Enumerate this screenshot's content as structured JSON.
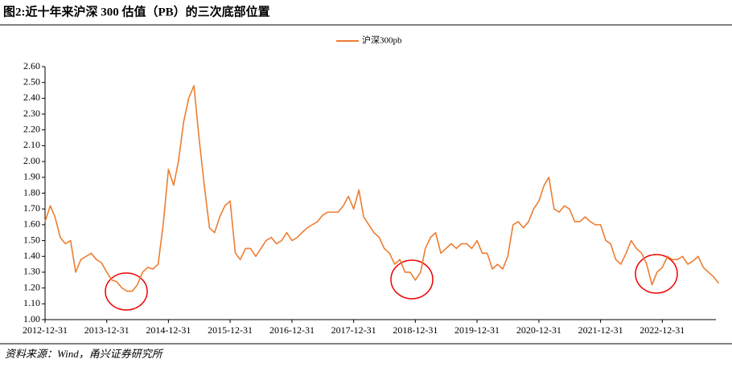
{
  "chart_data": {
    "type": "line",
    "title": "图2:近十年来沪深 300 估值（PB）的三次底部位置",
    "source": "资料来源：Wind，甬兴证券研究所",
    "legend": "top",
    "x": [
      "2012-12-31",
      "2013-01-31",
      "2013-02-28",
      "2013-03-31",
      "2013-04-30",
      "2013-05-31",
      "2013-06-30",
      "2013-07-31",
      "2013-08-31",
      "2013-09-30",
      "2013-10-31",
      "2013-11-30",
      "2013-12-31",
      "2014-01-31",
      "2014-02-28",
      "2014-03-31",
      "2014-04-30",
      "2014-05-31",
      "2014-06-30",
      "2014-07-31",
      "2014-08-31",
      "2014-09-30",
      "2014-10-31",
      "2014-11-30",
      "2014-12-31",
      "2015-01-31",
      "2015-02-28",
      "2015-03-31",
      "2015-04-30",
      "2015-05-31",
      "2015-06-30",
      "2015-07-31",
      "2015-08-31",
      "2015-09-30",
      "2015-10-31",
      "2015-11-30",
      "2015-12-31",
      "2016-01-31",
      "2016-02-29",
      "2016-03-31",
      "2016-04-30",
      "2016-05-31",
      "2016-06-30",
      "2016-07-31",
      "2016-08-31",
      "2016-09-30",
      "2016-10-31",
      "2016-11-30",
      "2016-12-31",
      "2017-01-31",
      "2017-02-28",
      "2017-03-31",
      "2017-04-30",
      "2017-05-31",
      "2017-06-30",
      "2017-07-31",
      "2017-08-31",
      "2017-09-30",
      "2017-10-31",
      "2017-11-30",
      "2017-12-31",
      "2018-01-31",
      "2018-02-28",
      "2018-03-31",
      "2018-04-30",
      "2018-05-31",
      "2018-06-30",
      "2018-07-31",
      "2018-08-31",
      "2018-09-30",
      "2018-10-31",
      "2018-11-30",
      "2018-12-31",
      "2019-01-31",
      "2019-02-28",
      "2019-03-31",
      "2019-04-30",
      "2019-05-31",
      "2019-06-30",
      "2019-07-31",
      "2019-08-31",
      "2019-09-30",
      "2019-10-31",
      "2019-11-30",
      "2019-12-31",
      "2020-01-31",
      "2020-02-29",
      "2020-03-31",
      "2020-04-30",
      "2020-05-31",
      "2020-06-30",
      "2020-07-31",
      "2020-08-31",
      "2020-09-30",
      "2020-10-31",
      "2020-11-30",
      "2020-12-31",
      "2021-01-31",
      "2021-02-28",
      "2021-03-31",
      "2021-04-30",
      "2021-05-31",
      "2021-06-30",
      "2021-07-31",
      "2021-08-31",
      "2021-09-30",
      "2021-10-31",
      "2021-11-30",
      "2021-12-31",
      "2022-01-31",
      "2022-02-28",
      "2022-03-31",
      "2022-04-30",
      "2022-05-31",
      "2022-06-30",
      "2022-07-31",
      "2022-08-31",
      "2022-09-30",
      "2022-10-31",
      "2022-11-30",
      "2022-12-31",
      "2023-01-31",
      "2023-02-28",
      "2023-03-31",
      "2023-04-30",
      "2023-05-31",
      "2023-06-30",
      "2023-07-31",
      "2023-08-31",
      "2023-09-30",
      "2023-10-31",
      "2023-11-30"
    ],
    "series": [
      {
        "name": "沪深300pb",
        "color": "#ed7d31",
        "values": [
          1.62,
          1.72,
          1.65,
          1.52,
          1.48,
          1.5,
          1.3,
          1.38,
          1.4,
          1.42,
          1.38,
          1.36,
          1.3,
          1.25,
          1.24,
          1.2,
          1.18,
          1.18,
          1.22,
          1.3,
          1.33,
          1.32,
          1.35,
          1.6,
          1.95,
          1.85,
          2.0,
          2.25,
          2.4,
          2.48,
          2.15,
          1.85,
          1.58,
          1.55,
          1.65,
          1.72,
          1.75,
          1.42,
          1.38,
          1.45,
          1.45,
          1.4,
          1.45,
          1.5,
          1.52,
          1.48,
          1.5,
          1.55,
          1.5,
          1.52,
          1.55,
          1.58,
          1.6,
          1.62,
          1.66,
          1.68,
          1.68,
          1.68,
          1.72,
          1.78,
          1.7,
          1.82,
          1.65,
          1.6,
          1.55,
          1.52,
          1.45,
          1.42,
          1.35,
          1.38,
          1.3,
          1.3,
          1.25,
          1.3,
          1.45,
          1.52,
          1.55,
          1.42,
          1.45,
          1.48,
          1.45,
          1.48,
          1.48,
          1.45,
          1.5,
          1.42,
          1.42,
          1.32,
          1.35,
          1.32,
          1.4,
          1.6,
          1.62,
          1.58,
          1.62,
          1.7,
          1.75,
          1.85,
          1.9,
          1.7,
          1.68,
          1.72,
          1.7,
          1.62,
          1.62,
          1.65,
          1.62,
          1.6,
          1.6,
          1.5,
          1.48,
          1.38,
          1.35,
          1.42,
          1.5,
          1.45,
          1.42,
          1.35,
          1.22,
          1.3,
          1.33,
          1.4,
          1.38,
          1.38,
          1.4,
          1.35,
          1.37,
          1.4,
          1.33,
          1.3,
          1.27,
          1.23
        ]
      }
    ],
    "xlim": [
      "2012-12-31",
      "2023-12-31"
    ],
    "xticks": [
      "2012-12-31",
      "2013-12-31",
      "2014-12-31",
      "2015-12-31",
      "2016-12-31",
      "2017-12-31",
      "2018-12-31",
      "2019-12-31",
      "2020-12-31",
      "2021-12-31",
      "2022-12-31"
    ],
    "ylim": [
      1.0,
      2.6
    ],
    "yticks": [
      {
        "value": 1.0,
        "label": "1.00"
      },
      {
        "value": 1.1,
        "label": "1.10"
      },
      {
        "value": 1.2,
        "label": "1.20"
      },
      {
        "value": 1.3,
        "label": "1.30"
      },
      {
        "value": 1.4,
        "label": "1.40"
      },
      {
        "value": 1.5,
        "label": "1.50"
      },
      {
        "value": 1.6,
        "label": "1.60"
      },
      {
        "value": 1.7,
        "label": "1.70"
      },
      {
        "value": 1.8,
        "label": "1.80"
      },
      {
        "value": 1.9,
        "label": "1.90"
      },
      {
        "value": 2.0,
        "label": "2.00"
      },
      {
        "value": 2.1,
        "label": "2.10"
      },
      {
        "value": 2.2,
        "label": "2.20"
      },
      {
        "value": 2.3,
        "label": "2.30"
      },
      {
        "value": 2.4,
        "label": "2.40"
      },
      {
        "value": 2.5,
        "label": "2.50"
      },
      {
        "value": 2.6,
        "label": "2.60"
      }
    ],
    "grid": false
  }
}
